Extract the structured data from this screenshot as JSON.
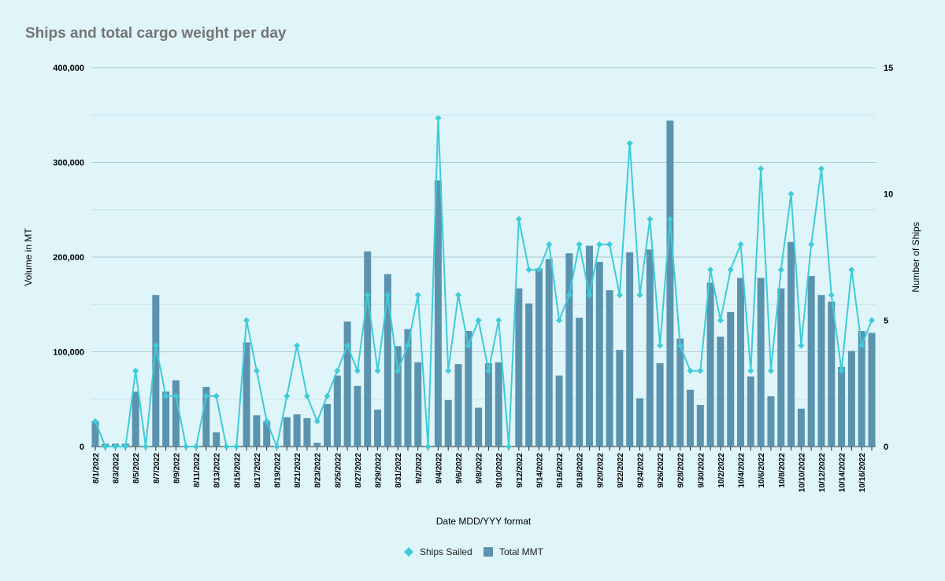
{
  "chart_data": {
    "type": "bar",
    "title": "Ships and total cargo weight per day",
    "xlabel": "Date MDD/YYY format",
    "ylabel": "Volume in MT",
    "y2label": "Number of Ships",
    "ylim": [
      0,
      400000
    ],
    "y2lim": [
      0,
      15
    ],
    "y_ticks": [
      "0",
      "100,000",
      "200,000",
      "300,000",
      "400,000"
    ],
    "y2_ticks": [
      "0",
      "5",
      "10",
      "15"
    ],
    "categories": [
      "8/1/2022",
      "8/2/2022",
      "8/3/2022",
      "8/4/2022",
      "8/5/2022",
      "8/6/2022",
      "8/7/2022",
      "8/8/2022",
      "8/9/2022",
      "8/10/2022",
      "8/11/2022",
      "8/12/2022",
      "8/13/2022",
      "8/14/2022",
      "8/15/2022",
      "8/16/2022",
      "8/17/2022",
      "8/18/2022",
      "8/19/2022",
      "8/20/2022",
      "8/21/2022",
      "8/22/2022",
      "8/23/2022",
      "8/24/2022",
      "8/25/2022",
      "8/26/2022",
      "8/27/2022",
      "8/28/2022",
      "8/29/2022",
      "8/30/2022",
      "8/31/2022",
      "9/1/2022",
      "9/2/2022",
      "9/3/2022",
      "9/4/2022",
      "9/5/2022",
      "9/6/2022",
      "9/7/2022",
      "9/8/2022",
      "9/9/2022",
      "9/10/2022",
      "9/11/2022",
      "9/12/2022",
      "9/13/2022",
      "9/14/2022",
      "9/15/2022",
      "9/16/2022",
      "9/17/2022",
      "9/18/2022",
      "9/19/2022",
      "9/20/2022",
      "9/21/2022",
      "9/22/2022",
      "9/23/2022",
      "9/24/2022",
      "9/25/2022",
      "9/26/2022",
      "9/27/2022",
      "9/28/2022",
      "9/29/2022",
      "9/30/2022",
      "10/1/2022",
      "10/2/2022",
      "10/3/2022",
      "10/4/2022",
      "10/5/2022",
      "10/6/2022",
      "10/7/2022",
      "10/8/2022",
      "10/9/2022",
      "10/10/2022",
      "10/11/2022",
      "10/12/2022",
      "10/13/2022",
      "10/14/2022",
      "10/15/2022",
      "10/16/2022",
      "10/17/2022"
    ],
    "shown_x_labels": [
      "8/1/2022",
      "8/3/2022",
      "8/5/2022",
      "8/7/2022",
      "8/9/2022",
      "8/11/2022",
      "8/13/2022",
      "8/15/2022",
      "8/17/2022",
      "8/19/2022",
      "8/21/2022",
      "8/23/2022",
      "8/25/2022",
      "8/27/2022",
      "8/29/2022",
      "8/31/2022",
      "9/2/2022",
      "9/4/2022",
      "9/6/2022",
      "9/8/2022",
      "9/10/2022",
      "9/12/2022",
      "9/14/2022",
      "9/16/2022",
      "9/18/2022",
      "9/20/2022",
      "9/22/2022",
      "9/24/2022",
      "9/26/2022",
      "9/28/2022",
      "9/30/2022",
      "10/2/2022",
      "10/4/2022",
      "10/6/2022",
      "10/8/2022",
      "10/10/2022",
      "10/12/2022",
      "10/14/2022",
      "10/16/2022"
    ],
    "series": [
      {
        "name": "Total MMT",
        "axis": "left",
        "kind": "bar",
        "color": "#5b93ae",
        "values": [
          27000,
          3000,
          3000,
          3000,
          58000,
          0,
          160000,
          58000,
          70000,
          0,
          0,
          63000,
          15000,
          0,
          0,
          110000,
          33000,
          27000,
          0,
          31000,
          34000,
          30000,
          4000,
          45000,
          75000,
          132000,
          64000,
          206000,
          39000,
          182000,
          106000,
          124000,
          89000,
          0,
          281000,
          49000,
          87000,
          122000,
          41000,
          88000,
          89000,
          0,
          167000,
          151000,
          188000,
          198000,
          75000,
          204000,
          136000,
          212000,
          195000,
          165000,
          102000,
          205000,
          51000,
          208000,
          88000,
          344000,
          114000,
          60000,
          44000,
          173000,
          116000,
          142000,
          178000,
          74000,
          178000,
          53000,
          167000,
          216000,
          40000,
          180000,
          160000,
          153000,
          84000,
          101000,
          122000,
          120000
        ]
      },
      {
        "name": "Ships Sailed",
        "axis": "right",
        "kind": "line",
        "color": "#3fcbd8",
        "values": [
          1,
          0,
          0,
          0,
          3,
          0,
          4,
          2,
          2,
          0,
          0,
          2,
          2,
          0,
          0,
          5,
          3,
          1,
          0,
          2,
          4,
          2,
          1,
          2,
          3,
          4,
          3,
          6,
          3,
          6,
          3,
          4,
          6,
          0,
          13,
          3,
          6,
          4,
          5,
          3,
          5,
          0,
          9,
          7,
          7,
          8,
          5,
          6,
          8,
          6,
          8,
          8,
          6,
          12,
          6,
          9,
          4,
          9,
          4,
          3,
          3,
          7,
          5,
          7,
          8,
          3,
          11,
          3,
          7,
          10,
          4,
          8,
          11,
          6,
          3,
          7,
          4,
          5
        ]
      }
    ],
    "legend": [
      "Ships Sailed",
      "Total MMT"
    ]
  }
}
